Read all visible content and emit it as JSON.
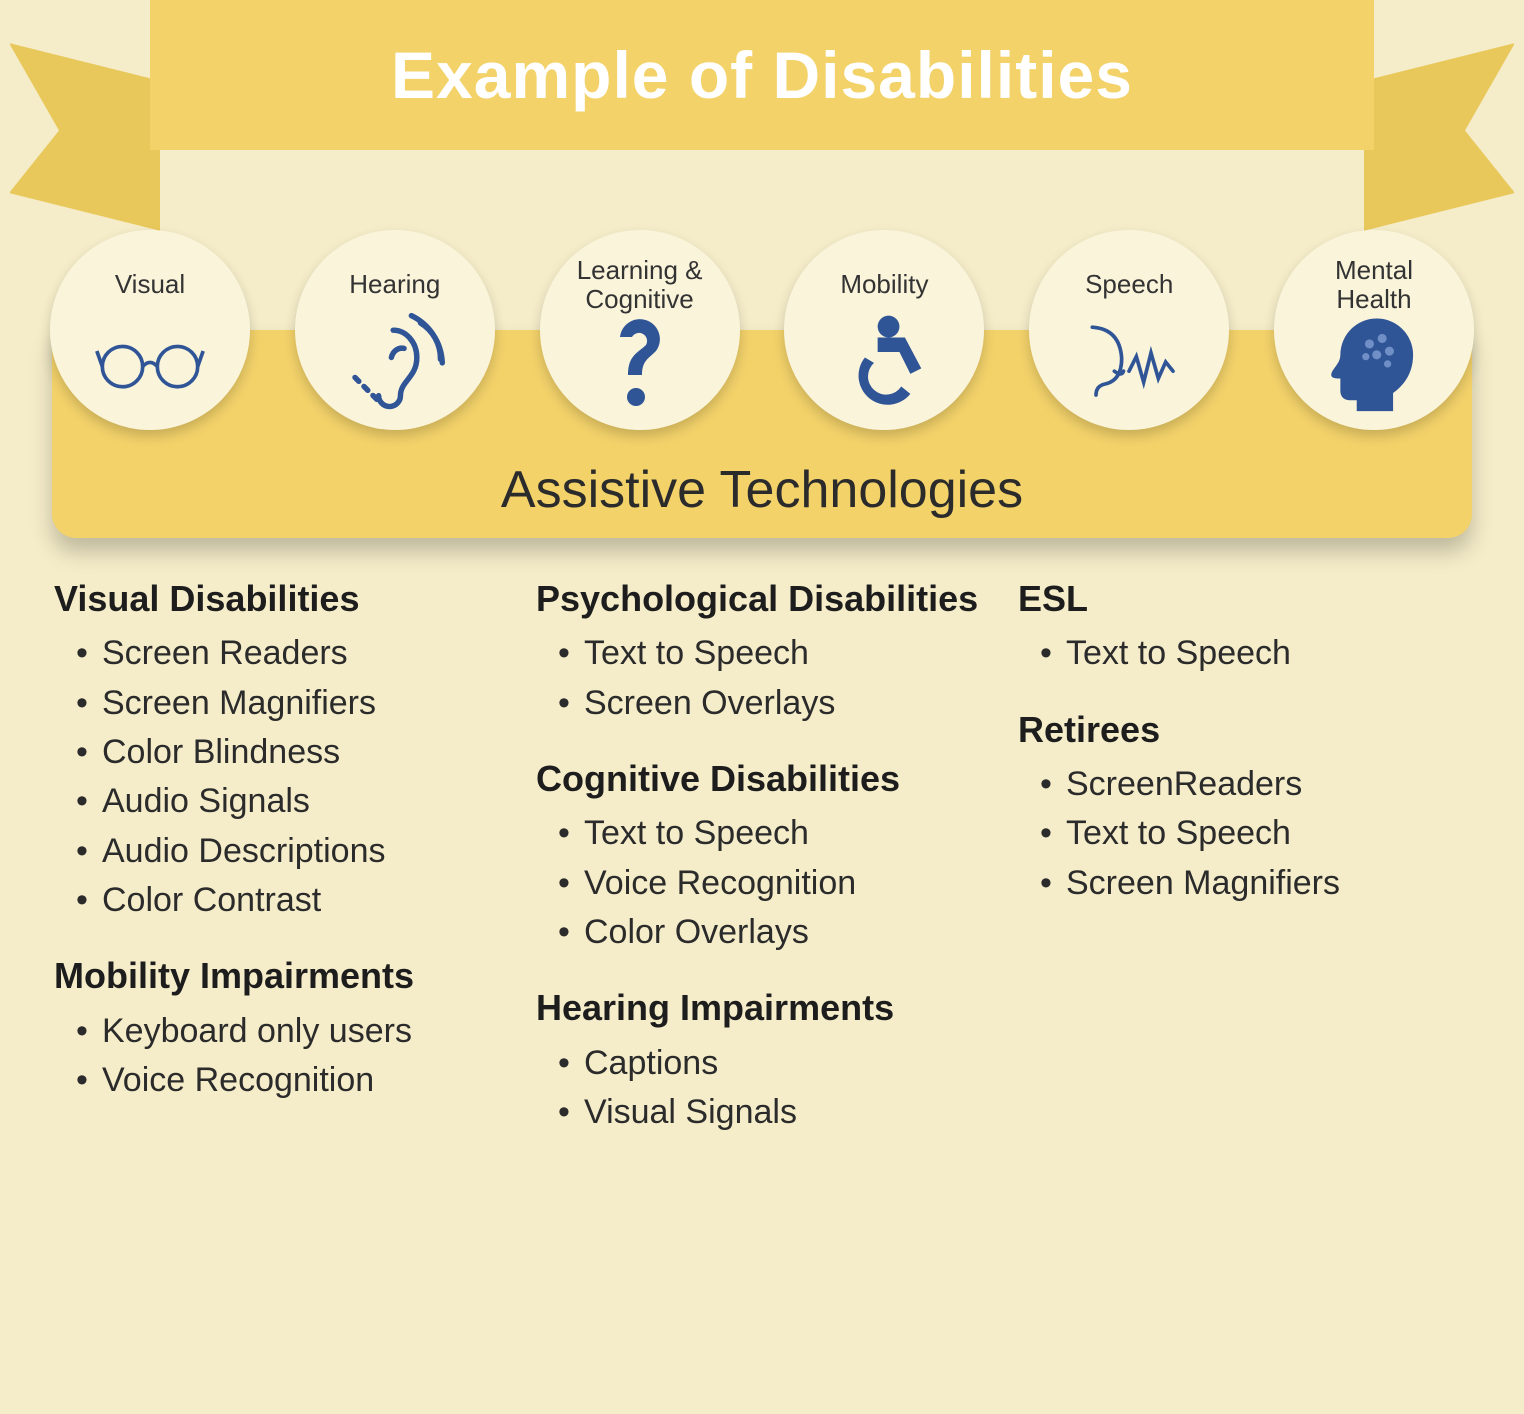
{
  "type": "infographic",
  "background_color": "#f5edc9",
  "ribbon": {
    "title": "Example of Disabilities",
    "center_color": "#f3d26a",
    "tail_color": "#e9c85b",
    "title_color": "#ffffff",
    "title_fontsize": 66
  },
  "band": {
    "title": "Assistive Technologies",
    "background_color": "#f3d26a",
    "title_fontsize": 52
  },
  "icon_color": "#2f5597",
  "circle_bg": "#faf4db",
  "categories": [
    {
      "label": "Visual",
      "icon": "glasses-icon"
    },
    {
      "label": "Hearing",
      "icon": "ear-icon"
    },
    {
      "label": "Learning &\nCognitive",
      "icon": "question-icon"
    },
    {
      "label": "Mobility",
      "icon": "wheelchair-icon"
    },
    {
      "label": "Speech",
      "icon": "speech-icon"
    },
    {
      "label": "Mental\nHealth",
      "icon": "brain-head-icon"
    }
  ],
  "columns": [
    [
      {
        "heading": "Visual Disabilities",
        "items": [
          "Screen Readers",
          "Screen Magnifiers",
          "Color Blindness",
          "Audio Signals",
          "Audio Descriptions",
          "Color Contrast"
        ]
      },
      {
        "heading": "Mobility Impairments",
        "items": [
          "Keyboard only users",
          "Voice Recognition"
        ]
      }
    ],
    [
      {
        "heading": "Psychological Disabilities",
        "items": [
          "Text to Speech",
          "Screen Overlays"
        ]
      },
      {
        "heading": "Cognitive Disabilities",
        "items": [
          "Text to Speech",
          "Voice Recognition",
          "Color Overlays"
        ]
      },
      {
        "heading": "Hearing Impairments",
        "items": [
          "Captions",
          "Visual Signals"
        ]
      }
    ],
    [
      {
        "heading": "ESL",
        "items": [
          "Text to Speech"
        ]
      },
      {
        "heading": "Retirees",
        "items": [
          "ScreenReaders",
          "Text to Speech",
          "Screen Magnifiers"
        ]
      }
    ]
  ]
}
